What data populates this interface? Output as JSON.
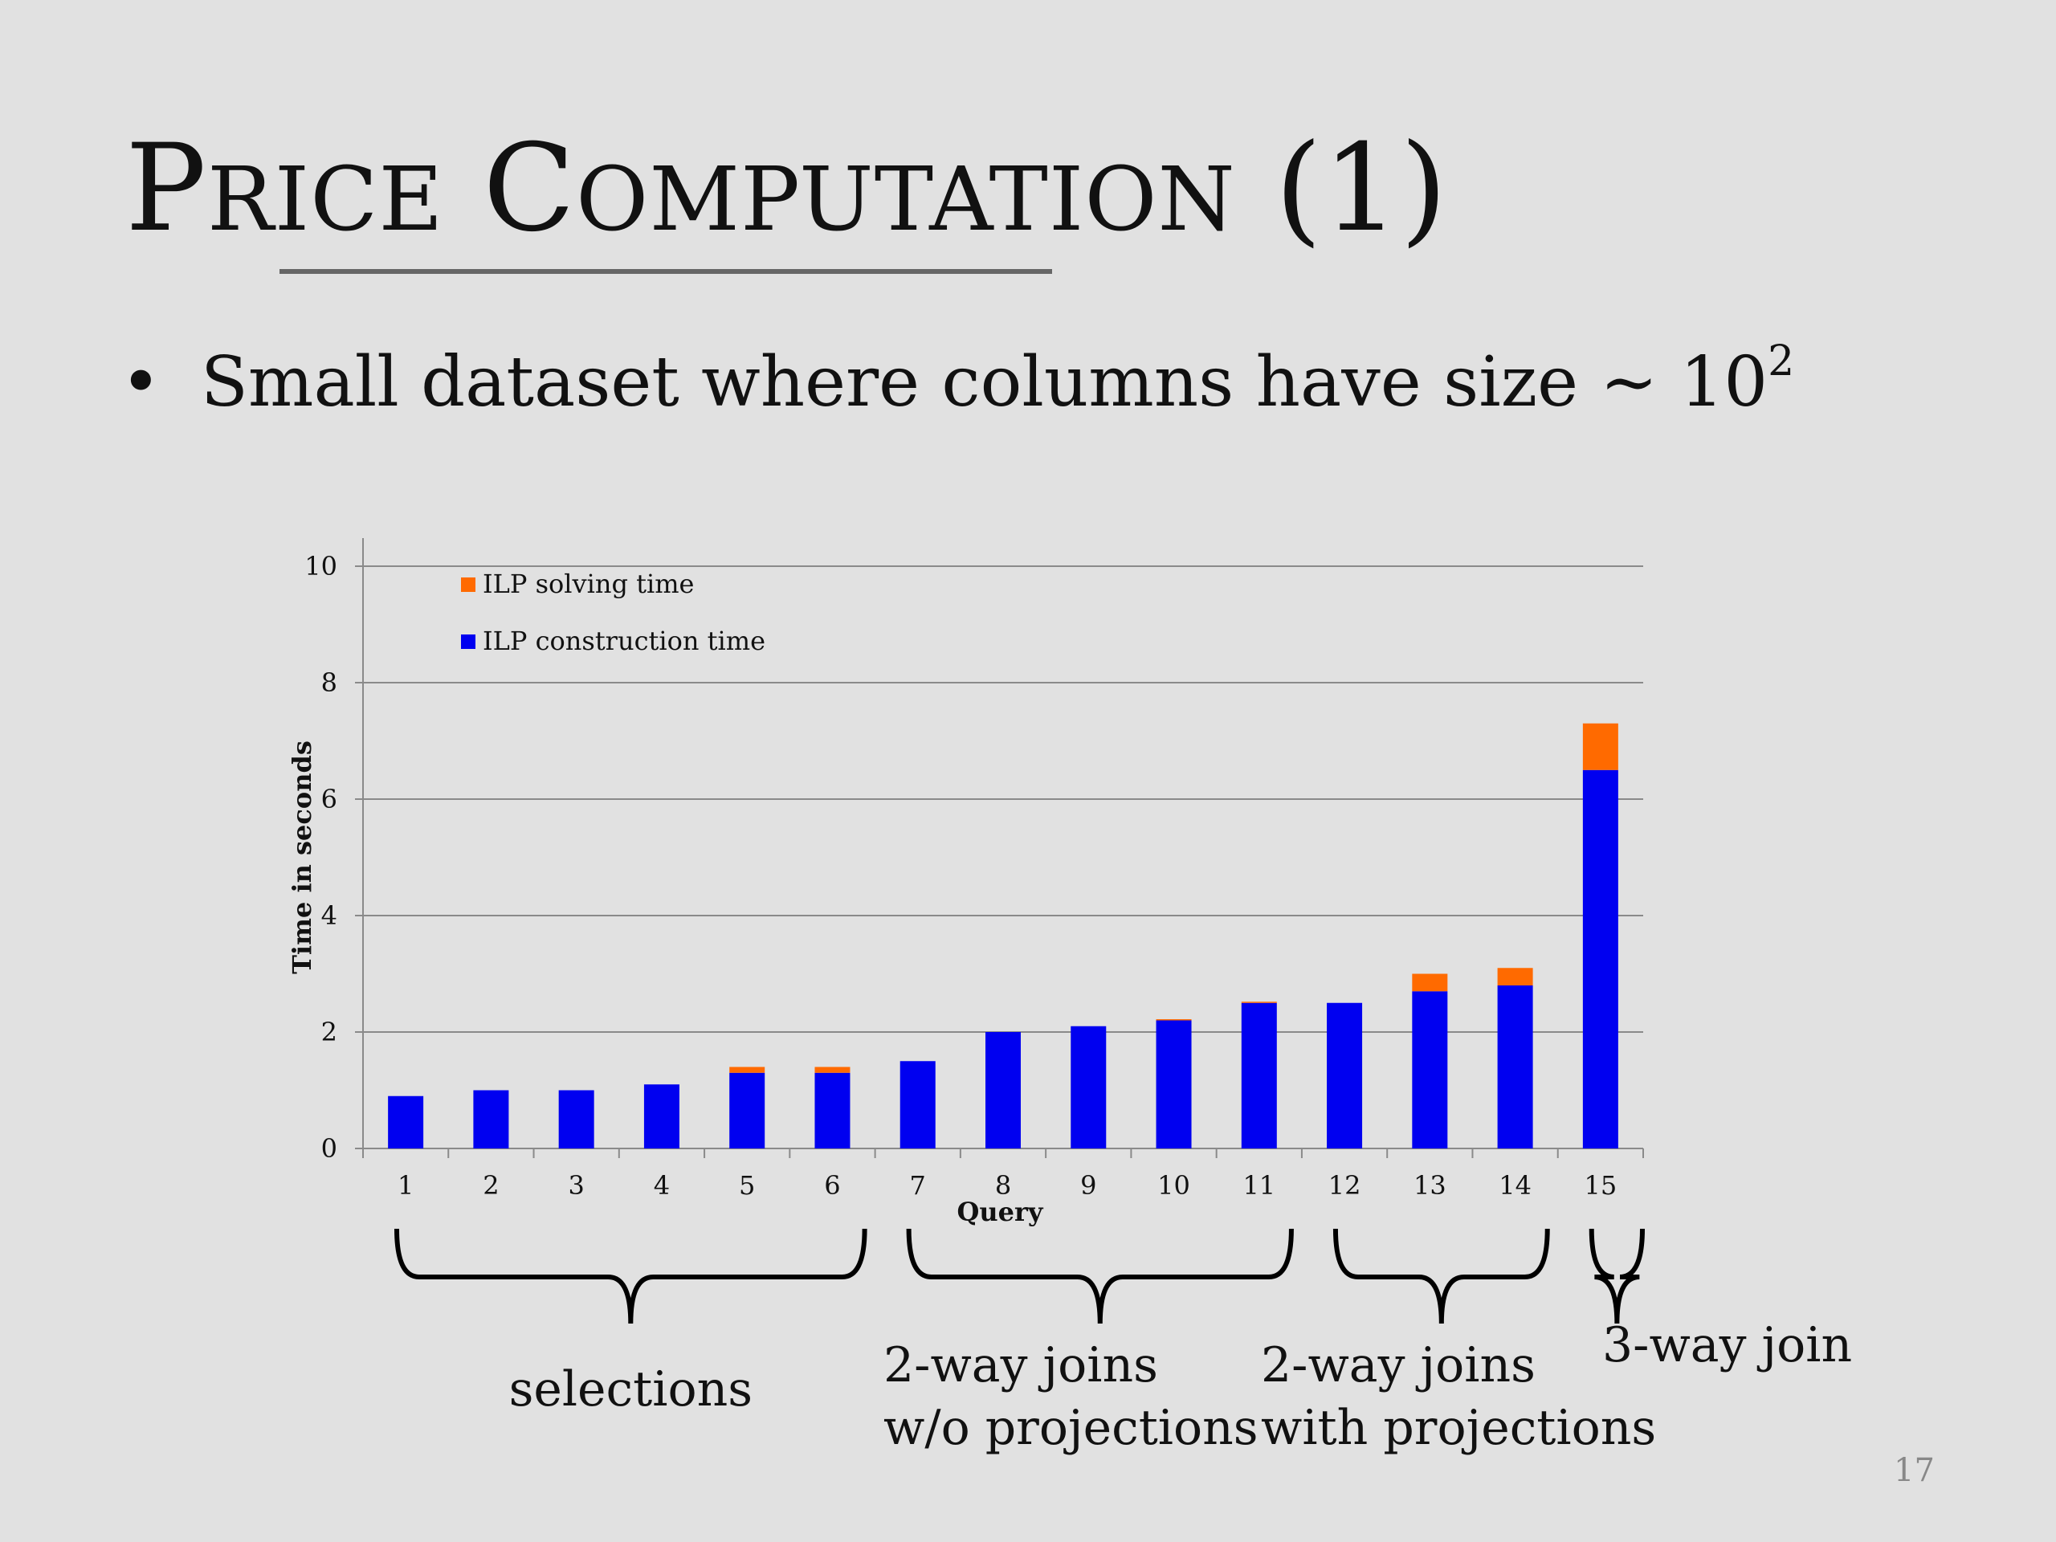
{
  "slide": {
    "title_first": "P",
    "title_first_rest": "rice",
    "title_second": "C",
    "title_second_rest": "omputation",
    "title_suffix": "(1)",
    "bullet_text": "Small dataset where columns have size ~ 10",
    "bullet_exponent": "2",
    "slide_number": "17"
  },
  "colors": {
    "construction": "#0000f0",
    "solving": "#ff6a00",
    "gridline": "#8a8a8a",
    "axis": "#444444"
  },
  "chart_data": {
    "type": "bar",
    "stacked": true,
    "categories": [
      "1",
      "2",
      "3",
      "4",
      "5",
      "6",
      "7",
      "8",
      "9",
      "10",
      "11",
      "12",
      "13",
      "14",
      "15"
    ],
    "series": [
      {
        "name": "ILP construction time",
        "color": "#0000f0",
        "values": [
          0.9,
          1.0,
          1.0,
          1.1,
          1.3,
          1.3,
          1.5,
          2.0,
          2.1,
          2.2,
          2.5,
          2.5,
          2.7,
          2.8,
          6.5
        ]
      },
      {
        "name": "ILP solving time",
        "color": "#ff6a00",
        "values": [
          0,
          0,
          0,
          0,
          0.1,
          0.1,
          0,
          0,
          0,
          0.02,
          0.02,
          0,
          0.3,
          0.3,
          0.8
        ]
      }
    ],
    "legend_order": [
      "ILP solving time",
      "ILP construction time"
    ],
    "legend_position": "top-left",
    "xlabel": "Query",
    "ylabel": "Time in seconds",
    "ylim": [
      0,
      10
    ],
    "yticks": [
      "0",
      "2",
      "4",
      "6",
      "8",
      "10"
    ],
    "grid": true,
    "groups": [
      {
        "lines": [
          "selections"
        ],
        "from": "1",
        "to": "6"
      },
      {
        "lines": [
          "2-way joins",
          "w/o projections"
        ],
        "from": "7",
        "to": "11"
      },
      {
        "lines": [
          "2-way joins",
          "with projections"
        ],
        "from": "12",
        "to": "14"
      },
      {
        "lines": [
          "3-way join"
        ],
        "from": "15",
        "to": "15"
      }
    ]
  }
}
